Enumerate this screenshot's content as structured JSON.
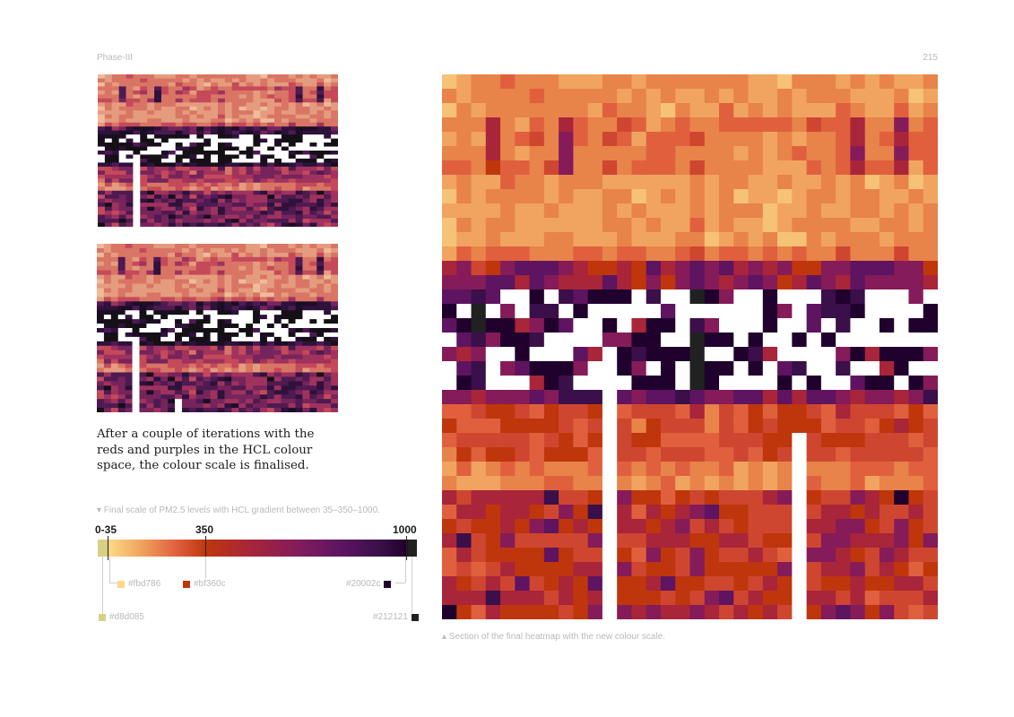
{
  "header": {
    "section": "Phase-III",
    "page_number": "215"
  },
  "body_text": "After a couple of iterations with the reds and purples in the HCL colour space, the colour scale is finalised.",
  "scale": {
    "caption": "▾ Final scale of PM2.5 levels with HCL gradient between 35–350–1000.",
    "ticks": [
      "0-35",
      "350",
      "1000"
    ],
    "swatches": {
      "c1": {
        "label": "#fbd786",
        "color": "#fbd786"
      },
      "c2": {
        "label": "#bf360c",
        "color": "#bf360c"
      },
      "c3": {
        "label": "#20002c",
        "color": "#20002c"
      },
      "c4": {
        "label": "#d8d085",
        "color": "#d8d085"
      },
      "c5": {
        "label": "#212121",
        "color": "#212121"
      }
    }
  },
  "figure_caption": "▴ Section of the final heatmap with the new colour scale.",
  "colors": {
    "ramp": [
      "#fbd786",
      "#f6c276",
      "#f0a45f",
      "#e8834a",
      "#e0603e",
      "#cf4630",
      "#bf360c",
      "#a8253a",
      "#851b58",
      "#5e1460",
      "#3a0f4a",
      "#20002c",
      "#212121"
    ],
    "old_ramp": [
      "#f6d3b0",
      "#efbb9a",
      "#e59c7e",
      "#d97564",
      "#c44a5a",
      "#a0325e",
      "#76245c",
      "#4e1a52",
      "#2e123c",
      "#1c0d27",
      "#141016",
      "#141016",
      "#141016"
    ]
  }
}
